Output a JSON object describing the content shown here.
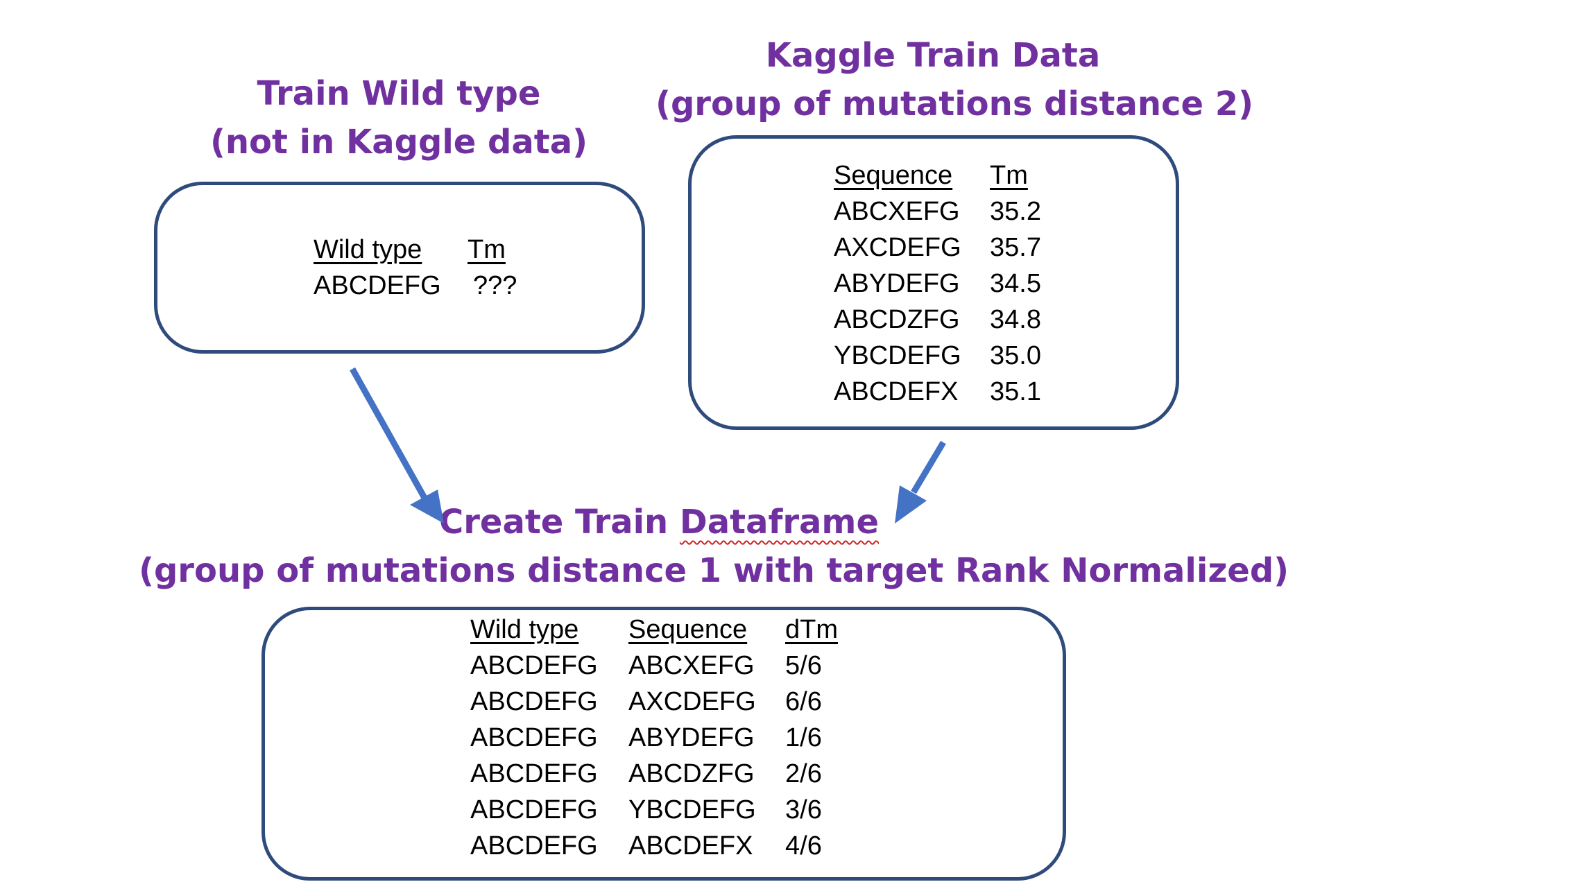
{
  "wild_type_block": {
    "title_line1": "Train Wild type",
    "title_line2": "(not in Kaggle data)",
    "columns": [
      "Wild type",
      "Tm"
    ],
    "rows": [
      [
        "ABCDEFG",
        "???"
      ]
    ]
  },
  "kaggle_block": {
    "title_line1": "Kaggle Train Data",
    "title_line2": "(group of mutations distance 2)",
    "columns": [
      "Sequence",
      "Tm"
    ],
    "rows": [
      [
        "ABCXEFG",
        "35.2"
      ],
      [
        "AXCDEFG",
        "35.7"
      ],
      [
        "ABYDEFG",
        "34.5"
      ],
      [
        "ABCDZFG",
        "34.8"
      ],
      [
        "YBCDEFG",
        "35.0"
      ],
      [
        "ABCDEFX",
        "35.1"
      ]
    ]
  },
  "result_block": {
    "title_line1_part1": "Create Train ",
    "title_line1_part2": "Dataframe",
    "title_line2": "(group of mutations distance 1 with target Rank Normalized)",
    "columns": [
      "Wild type",
      "Sequence",
      "dTm"
    ],
    "rows": [
      [
        "ABCDEFG",
        "ABCXEFG",
        "5/6"
      ],
      [
        "ABCDEFG",
        "AXCDEFG",
        "6/6"
      ],
      [
        "ABCDEFG",
        "ABYDEFG",
        "1/6"
      ],
      [
        "ABCDEFG",
        "ABCDZFG",
        "2/6"
      ],
      [
        "ABCDEFG",
        "YBCDEFG",
        "3/6"
      ],
      [
        "ABCDEFG",
        "ABCDEFX",
        "4/6"
      ]
    ]
  },
  "colors": {
    "title": "#7030a0",
    "box_border": "#2f4b7c",
    "arrow": "#4472c4",
    "spellcheck": "#d02020"
  }
}
